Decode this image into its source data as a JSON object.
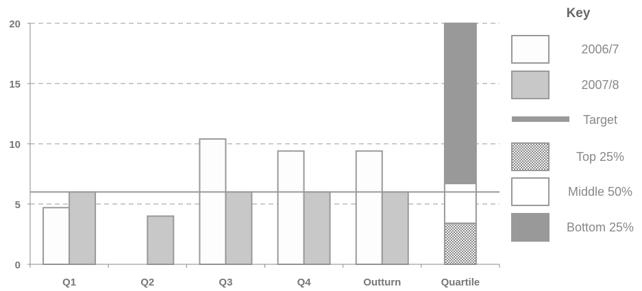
{
  "chart_data": {
    "type": "bar",
    "categories": [
      "Q1",
      "Q2",
      "Q3",
      "Q4",
      "Outturn",
      "Quartile"
    ],
    "ylim": [
      0,
      20
    ],
    "yticks": [
      0,
      5,
      10,
      15,
      20
    ],
    "grid": "horizontal dashed",
    "series": [
      {
        "name": "2006/7",
        "values": [
          4.7,
          null,
          10.4,
          9.4,
          9.4,
          null
        ],
        "color": "#fdfdfd"
      },
      {
        "name": "2007/8",
        "values": [
          6.0,
          4.0,
          6.0,
          6.0,
          6.0,
          null
        ],
        "color": "#c8c8c8"
      }
    ],
    "target": {
      "name": "Target",
      "value": 6.0,
      "color": "#999999"
    },
    "quartile": {
      "category": "Quartile",
      "bands": [
        {
          "name": "Bottom 25%",
          "from": 6.7,
          "to": 20,
          "fill": "#999999"
        },
        {
          "name": "Middle 50%",
          "from": 3.4,
          "to": 6.7,
          "fill": "#ffffff"
        },
        {
          "name": "Top 25%",
          "from": 0,
          "to": 3.4,
          "fill": "pattern"
        }
      ]
    },
    "legend": {
      "title": "Key",
      "position": "right",
      "items": [
        "2006/7",
        "2007/8",
        "Target",
        "Top 25%",
        "Middle 50%",
        "Bottom 25%"
      ]
    }
  }
}
